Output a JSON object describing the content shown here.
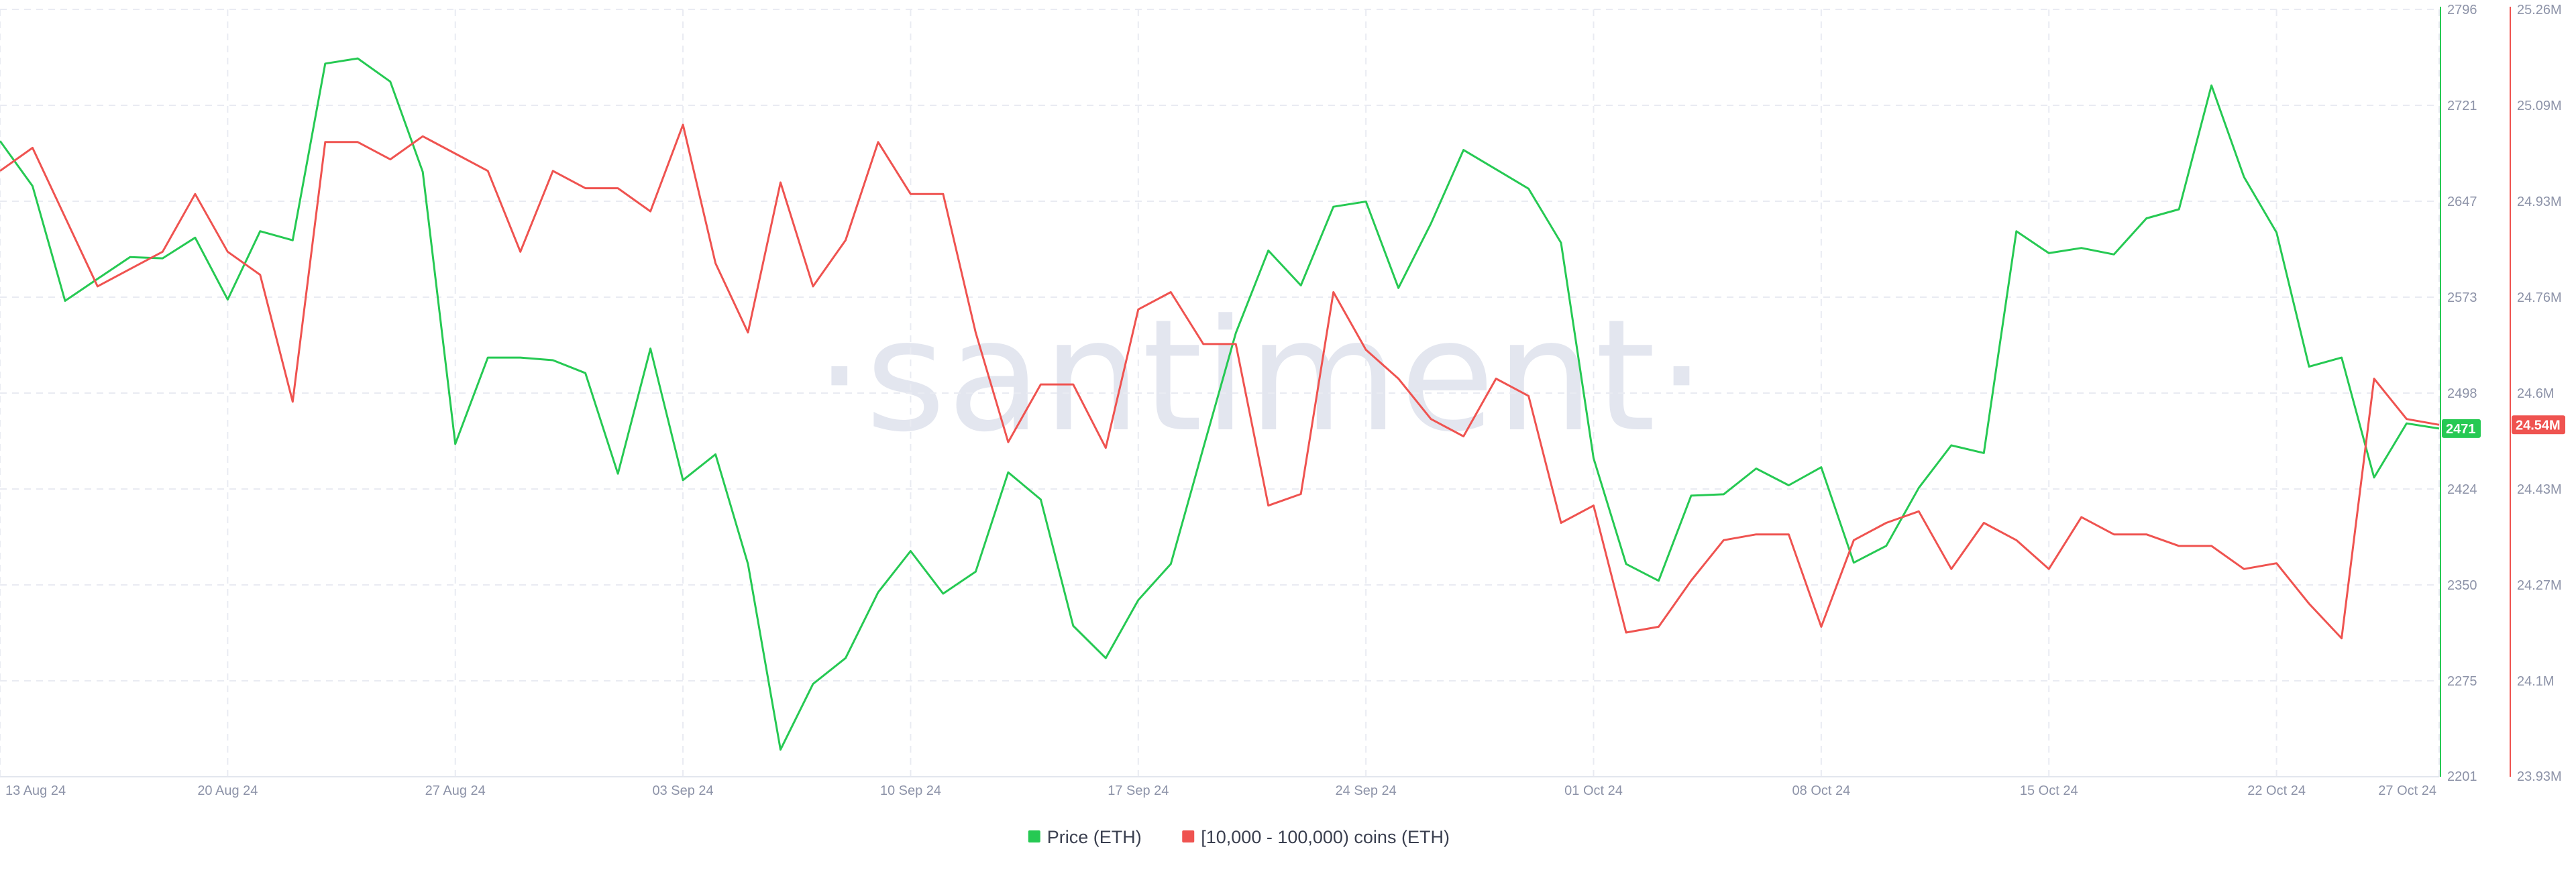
{
  "chart_data": {
    "type": "line",
    "watermark": "·santiment·",
    "x": [
      "2024-08-13",
      "2024-08-14",
      "2024-08-15",
      "2024-08-16",
      "2024-08-17",
      "2024-08-18",
      "2024-08-19",
      "2024-08-20",
      "2024-08-21",
      "2024-08-22",
      "2024-08-23",
      "2024-08-24",
      "2024-08-25",
      "2024-08-26",
      "2024-08-27",
      "2024-08-28",
      "2024-08-29",
      "2024-08-30",
      "2024-08-31",
      "2024-09-01",
      "2024-09-02",
      "2024-09-03",
      "2024-09-04",
      "2024-09-05",
      "2024-09-06",
      "2024-09-07",
      "2024-09-08",
      "2024-09-09",
      "2024-09-10",
      "2024-09-11",
      "2024-09-12",
      "2024-09-13",
      "2024-09-14",
      "2024-09-15",
      "2024-09-16",
      "2024-09-17",
      "2024-09-18",
      "2024-09-19",
      "2024-09-20",
      "2024-09-21",
      "2024-09-22",
      "2024-09-23",
      "2024-09-24",
      "2024-09-25",
      "2024-09-26",
      "2024-09-27",
      "2024-09-28",
      "2024-09-29",
      "2024-09-30",
      "2024-10-01",
      "2024-10-02",
      "2024-10-03",
      "2024-10-04",
      "2024-10-05",
      "2024-10-06",
      "2024-10-07",
      "2024-10-08",
      "2024-10-09",
      "2024-10-10",
      "2024-10-11",
      "2024-10-12",
      "2024-10-13",
      "2024-10-14",
      "2024-10-15",
      "2024-10-16",
      "2024-10-17",
      "2024-10-18",
      "2024-10-19",
      "2024-10-20",
      "2024-10-21",
      "2024-10-22",
      "2024-10-23",
      "2024-10-24",
      "2024-10-25",
      "2024-10-26",
      "2024-10-27"
    ],
    "x_ticks": [
      {
        "date": "2024-08-13",
        "label": "13 Aug 24"
      },
      {
        "date": "2024-08-20",
        "label": "20 Aug 24"
      },
      {
        "date": "2024-08-27",
        "label": "27 Aug 24"
      },
      {
        "date": "2024-09-03",
        "label": "03 Sep 24"
      },
      {
        "date": "2024-09-10",
        "label": "10 Sep 24"
      },
      {
        "date": "2024-09-17",
        "label": "17 Sep 24"
      },
      {
        "date": "2024-09-24",
        "label": "24 Sep 24"
      },
      {
        "date": "2024-10-01",
        "label": "01 Oct 24"
      },
      {
        "date": "2024-10-08",
        "label": "08 Oct 24"
      },
      {
        "date": "2024-10-15",
        "label": "15 Oct 24"
      },
      {
        "date": "2024-10-22",
        "label": "22 Oct 24"
      },
      {
        "date": "2024-10-27",
        "label": "27 Oct 24"
      }
    ],
    "y_left": {
      "ylim": [
        2201,
        2796
      ],
      "ticks": [
        "2201",
        "2275",
        "2350",
        "2424",
        "2498",
        "2573",
        "2647",
        "2721",
        "2796"
      ],
      "color": "#26c953"
    },
    "y_right": {
      "ylim": [
        23.93,
        25.26
      ],
      "ticks": [
        "23.93M",
        "24.1M",
        "24.27M",
        "24.43M",
        "24.6M",
        "24.76M",
        "24.93M",
        "25.09M",
        "25.26M"
      ],
      "color": "#ef5350"
    },
    "series": [
      {
        "name": "Price (ETH)",
        "axis": "left",
        "color": "#26c953",
        "values": [
          2694,
          2659,
          2570,
          2587,
          2604,
          2603,
          2619,
          2571,
          2624,
          2617,
          2754,
          2758,
          2740,
          2670,
          2459,
          2526,
          2526,
          2524,
          2514,
          2436,
          2533,
          2431,
          2451,
          2366,
          2222,
          2273,
          2293,
          2344,
          2376,
          2343,
          2360,
          2437,
          2416,
          2318,
          2293,
          2338,
          2366,
          2456,
          2545,
          2609,
          2582,
          2643,
          2647,
          2580,
          2630,
          2687,
          2672,
          2657,
          2615,
          2448,
          2366,
          2353,
          2419,
          2420,
          2440,
          2427,
          2441,
          2367,
          2380,
          2425,
          2458,
          2452,
          2624,
          2607,
          2611,
          2606,
          2634,
          2641,
          2737,
          2666,
          2623,
          2519,
          2526,
          2433,
          2475,
          2471
        ]
      },
      {
        "name": "[10,000 - 100,000) coins (ETH)",
        "axis": "right",
        "color": "#ef5350",
        "values": [
          24.98,
          25.02,
          24.9,
          24.78,
          24.81,
          24.84,
          24.94,
          24.84,
          24.8,
          24.58,
          25.03,
          25.03,
          25.0,
          25.04,
          25.01,
          24.98,
          24.84,
          24.98,
          24.95,
          24.95,
          24.91,
          25.06,
          24.82,
          24.7,
          24.96,
          24.78,
          24.86,
          25.03,
          24.94,
          24.94,
          24.7,
          24.51,
          24.61,
          24.61,
          24.5,
          24.74,
          24.77,
          24.68,
          24.68,
          24.4,
          24.42,
          24.77,
          24.67,
          24.62,
          24.55,
          24.52,
          24.62,
          24.59,
          24.37,
          24.4,
          24.18,
          24.19,
          24.27,
          24.34,
          24.35,
          24.35,
          24.19,
          24.34,
          24.37,
          24.39,
          24.29,
          24.37,
          24.34,
          24.29,
          24.38,
          24.35,
          24.35,
          24.33,
          24.33,
          24.29,
          24.3,
          24.23,
          24.17,
          24.62,
          24.55,
          24.54
        ]
      }
    ],
    "last_value_badges": [
      {
        "axis": "left",
        "label": "2471",
        "color": "#26c953"
      },
      {
        "axis": "right",
        "label": "24.54M",
        "color": "#ef5350"
      }
    ],
    "legend": {
      "placement": "bottom-center",
      "items": [
        {
          "label": "Price (ETH)",
          "color": "#26c953"
        },
        {
          "label": "[10,000 - 100,000) coins (ETH)",
          "color": "#ef5350"
        }
      ]
    },
    "grid": true
  }
}
